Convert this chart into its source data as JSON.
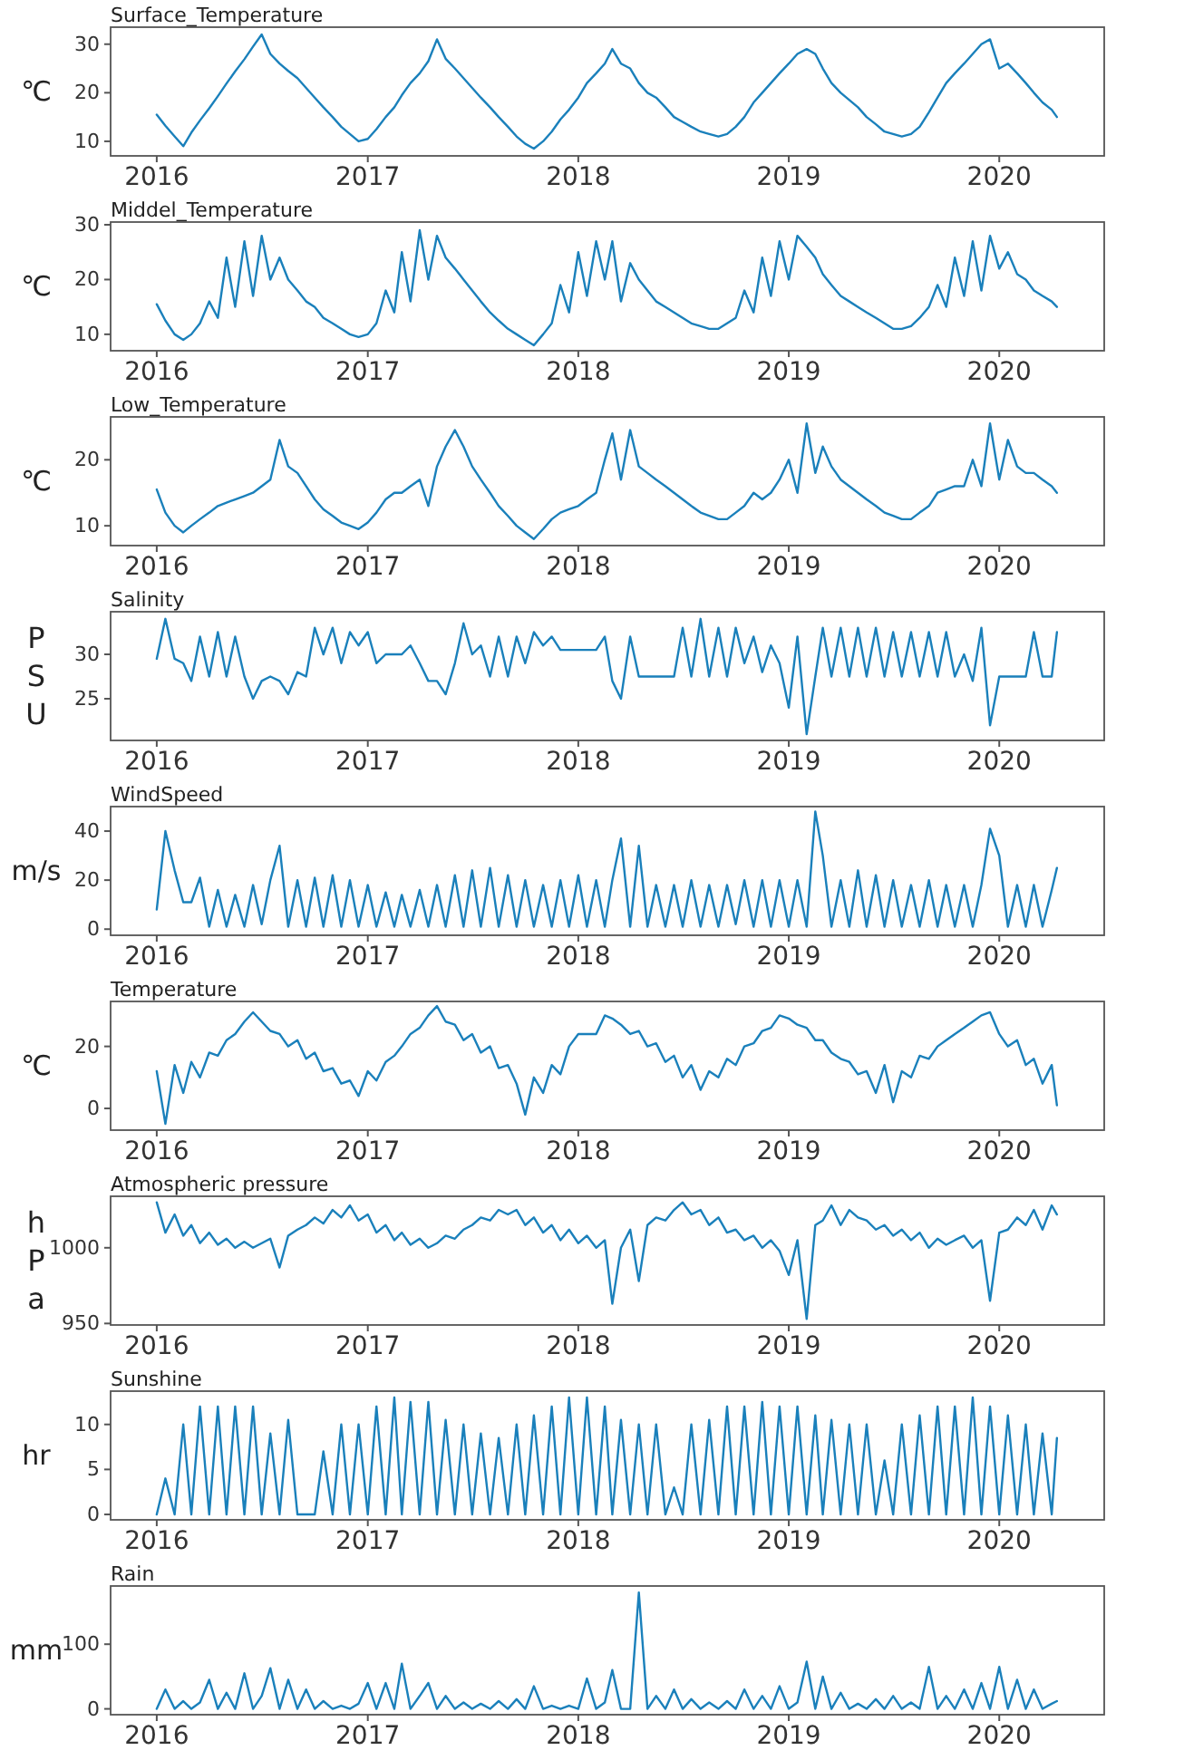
{
  "chart_data": [
    {
      "type": "line",
      "title": "Surface_Temperature",
      "ylabel": "℃",
      "color": "#1a80bb",
      "xlim": [
        "2015-10-13",
        "2020-07-01"
      ],
      "xticks": [
        {
          "value": "2016-01-01",
          "label": "2016"
        },
        {
          "value": "2017-01-01",
          "label": "2017"
        },
        {
          "value": "2018-01-01",
          "label": "2018"
        },
        {
          "value": "2019-01-01",
          "label": "2019"
        },
        {
          "value": "2020-01-01",
          "label": "2020"
        }
      ],
      "ylim": [
        7,
        33.5
      ],
      "yticks": [
        10,
        20,
        30
      ],
      "x": [
        "2016-01-01",
        "2016-01-16",
        "2016-02-01",
        "2016-02-16",
        "2016-03-01",
        "2016-03-16",
        "2016-04-01",
        "2016-04-16",
        "2016-05-01",
        "2016-05-16",
        "2016-06-01",
        "2016-06-16",
        "2016-07-01",
        "2016-07-16",
        "2016-08-01",
        "2016-08-16",
        "2016-09-01",
        "2016-09-16",
        "2016-10-01",
        "2016-10-16",
        "2016-11-01",
        "2016-11-16",
        "2016-12-01",
        "2016-12-16",
        "2017-01-01",
        "2017-01-16",
        "2017-02-01",
        "2017-02-16",
        "2017-03-01",
        "2017-03-16",
        "2017-04-01",
        "2017-04-16",
        "2017-05-01",
        "2017-05-16",
        "2017-06-01",
        "2017-06-16",
        "2017-07-01",
        "2017-07-16",
        "2017-08-01",
        "2017-08-16",
        "2017-09-01",
        "2017-09-16",
        "2017-10-01",
        "2017-10-16",
        "2017-11-01",
        "2017-11-16",
        "2017-12-01",
        "2017-12-16",
        "2018-01-01",
        "2018-01-16",
        "2018-02-01",
        "2018-02-16",
        "2018-03-01",
        "2018-03-16",
        "2018-04-01",
        "2018-04-16",
        "2018-05-01",
        "2018-05-16",
        "2018-06-01",
        "2018-06-16",
        "2018-07-01",
        "2018-07-16",
        "2018-08-01",
        "2018-08-16",
        "2018-09-01",
        "2018-09-16",
        "2018-10-01",
        "2018-10-16",
        "2018-11-01",
        "2018-11-16",
        "2018-12-01",
        "2018-12-16",
        "2019-01-01",
        "2019-01-16",
        "2019-02-01",
        "2019-02-16",
        "2019-03-01",
        "2019-03-16",
        "2019-04-01",
        "2019-04-16",
        "2019-05-01",
        "2019-05-16",
        "2019-06-01",
        "2019-06-16",
        "2019-07-01",
        "2019-07-16",
        "2019-08-01",
        "2019-08-16",
        "2019-09-01",
        "2019-09-16",
        "2019-10-01",
        "2019-10-16",
        "2019-11-01",
        "2019-11-16",
        "2019-12-01",
        "2019-12-16",
        "2020-01-01",
        "2020-01-16",
        "2020-02-01",
        "2020-02-16",
        "2020-03-01",
        "2020-03-16",
        "2020-04-01",
        "2020-04-10"
      ],
      "values": [
        15.5,
        13.2,
        11,
        9,
        11.8,
        14.3,
        16.8,
        19.3,
        21.9,
        24.4,
        26.9,
        29.5,
        32,
        28,
        26,
        24.5,
        23,
        21,
        19,
        17,
        15,
        13,
        11.5,
        10,
        10.5,
        12.5,
        15,
        17,
        19.5,
        22,
        24,
        26.5,
        31,
        27,
        25,
        23,
        21,
        19,
        17,
        15,
        13,
        11,
        9.5,
        8.5,
        10,
        12,
        14.5,
        16.5,
        19,
        22,
        24,
        26,
        29,
        26,
        25,
        22,
        20,
        19,
        17,
        15,
        14,
        13,
        12,
        11.5,
        11,
        11.5,
        13,
        15,
        18,
        20,
        22,
        24,
        26,
        28,
        29,
        28,
        25,
        22,
        20,
        18.5,
        17,
        15,
        13.5,
        12,
        11.5,
        11,
        11.5,
        13,
        16,
        19,
        22,
        24,
        26,
        28,
        30,
        31,
        25,
        26,
        24,
        22,
        20,
        18,
        16.5,
        15
      ]
    },
    {
      "type": "line",
      "title": "Middel_Temperature",
      "ylabel": "℃",
      "color": "#1a80bb",
      "xlim": [
        "2015-10-13",
        "2020-07-01"
      ],
      "xticks": [
        {
          "value": "2016-01-01",
          "label": "2016"
        },
        {
          "value": "2017-01-01",
          "label": "2017"
        },
        {
          "value": "2018-01-01",
          "label": "2018"
        },
        {
          "value": "2019-01-01",
          "label": "2019"
        },
        {
          "value": "2020-01-01",
          "label": "2020"
        }
      ],
      "ylim": [
        7,
        30.5
      ],
      "yticks": [
        10,
        20,
        30
      ],
      "x": [
        "2016-01-01",
        "2016-01-16",
        "2016-02-01",
        "2016-02-16",
        "2016-03-01",
        "2016-03-16",
        "2016-04-01",
        "2016-04-16",
        "2016-05-01",
        "2016-05-16",
        "2016-06-01",
        "2016-06-16",
        "2016-07-01",
        "2016-07-16",
        "2016-08-01",
        "2016-08-16",
        "2016-09-01",
        "2016-09-16",
        "2016-10-01",
        "2016-10-16",
        "2016-11-01",
        "2016-11-16",
        "2016-12-01",
        "2016-12-16",
        "2017-01-01",
        "2017-01-16",
        "2017-02-01",
        "2017-02-16",
        "2017-03-01",
        "2017-03-16",
        "2017-04-01",
        "2017-04-16",
        "2017-05-01",
        "2017-05-16",
        "2017-06-01",
        "2017-06-16",
        "2017-07-01",
        "2017-07-16",
        "2017-08-01",
        "2017-08-16",
        "2017-09-01",
        "2017-09-16",
        "2017-10-01",
        "2017-10-16",
        "2017-11-01",
        "2017-11-16",
        "2017-12-01",
        "2017-12-16",
        "2018-01-01",
        "2018-01-16",
        "2018-02-01",
        "2018-02-16",
        "2018-03-01",
        "2018-03-16",
        "2018-04-01",
        "2018-04-16",
        "2018-05-01",
        "2018-05-16",
        "2018-06-01",
        "2018-06-16",
        "2018-07-01",
        "2018-07-16",
        "2018-08-01",
        "2018-08-16",
        "2018-09-01",
        "2018-09-16",
        "2018-10-01",
        "2018-10-16",
        "2018-11-01",
        "2018-11-16",
        "2018-12-01",
        "2018-12-16",
        "2019-01-01",
        "2019-01-16",
        "2019-02-01",
        "2019-02-16",
        "2019-03-01",
        "2019-03-16",
        "2019-04-01",
        "2019-04-16",
        "2019-05-01",
        "2019-05-16",
        "2019-06-01",
        "2019-06-16",
        "2019-07-01",
        "2019-07-16",
        "2019-08-01",
        "2019-08-16",
        "2019-09-01",
        "2019-09-16",
        "2019-10-01",
        "2019-10-16",
        "2019-11-01",
        "2019-11-16",
        "2019-12-01",
        "2019-12-16",
        "2020-01-01",
        "2020-01-16",
        "2020-02-01",
        "2020-02-16",
        "2020-03-01",
        "2020-03-16",
        "2020-04-01",
        "2020-04-10"
      ],
      "values": [
        15.5,
        12.5,
        10,
        9,
        10,
        12,
        16,
        13,
        24,
        15,
        27,
        17,
        28,
        20,
        24,
        20,
        18,
        16,
        15,
        13,
        12,
        11,
        10,
        9.5,
        10,
        12,
        18,
        14,
        25,
        16,
        29,
        20,
        28,
        24,
        22,
        20,
        18,
        16,
        14,
        12.5,
        11,
        10,
        9,
        8,
        10,
        12,
        19,
        14,
        25,
        17,
        27,
        20,
        27,
        16,
        23,
        20,
        18,
        16,
        15,
        14,
        13,
        12,
        11.5,
        11,
        11,
        12,
        13,
        18,
        14,
        24,
        17,
        27,
        20,
        28,
        26,
        24,
        21,
        19,
        17,
        16,
        15,
        14,
        13,
        12,
        11,
        11,
        11.5,
        13,
        15,
        19,
        15,
        24,
        17,
        27,
        18,
        28,
        22,
        25,
        21,
        20,
        18,
        17,
        16,
        15
      ]
    },
    {
      "type": "line",
      "title": "Low_Temperature",
      "ylabel": "℃",
      "color": "#1a80bb",
      "xlim": [
        "2015-10-13",
        "2020-07-01"
      ],
      "xticks": [
        {
          "value": "2016-01-01",
          "label": "2016"
        },
        {
          "value": "2017-01-01",
          "label": "2017"
        },
        {
          "value": "2018-01-01",
          "label": "2018"
        },
        {
          "value": "2019-01-01",
          "label": "2019"
        },
        {
          "value": "2020-01-01",
          "label": "2020"
        }
      ],
      "ylim": [
        7,
        26.5
      ],
      "yticks": [
        10,
        20
      ],
      "x": [
        "2016-01-01",
        "2016-01-16",
        "2016-02-01",
        "2016-02-16",
        "2016-03-01",
        "2016-03-16",
        "2016-04-01",
        "2016-04-16",
        "2016-05-01",
        "2016-05-16",
        "2016-06-01",
        "2016-06-16",
        "2016-07-01",
        "2016-07-16",
        "2016-08-01",
        "2016-08-16",
        "2016-09-01",
        "2016-09-16",
        "2016-10-01",
        "2016-10-16",
        "2016-11-01",
        "2016-11-16",
        "2016-12-01",
        "2016-12-16",
        "2017-01-01",
        "2017-01-16",
        "2017-02-01",
        "2017-02-16",
        "2017-03-01",
        "2017-03-16",
        "2017-04-01",
        "2017-04-16",
        "2017-05-01",
        "2017-05-16",
        "2017-06-01",
        "2017-06-16",
        "2017-07-01",
        "2017-07-16",
        "2017-08-01",
        "2017-08-16",
        "2017-09-01",
        "2017-09-16",
        "2017-10-01",
        "2017-10-16",
        "2017-11-01",
        "2017-11-16",
        "2017-12-01",
        "2017-12-16",
        "2018-01-01",
        "2018-01-16",
        "2018-02-01",
        "2018-02-16",
        "2018-03-01",
        "2018-03-16",
        "2018-04-01",
        "2018-04-16",
        "2018-05-01",
        "2018-05-16",
        "2018-06-01",
        "2018-06-16",
        "2018-07-01",
        "2018-07-16",
        "2018-08-01",
        "2018-08-16",
        "2018-09-01",
        "2018-09-16",
        "2018-10-01",
        "2018-10-16",
        "2018-11-01",
        "2018-11-16",
        "2018-12-01",
        "2018-12-16",
        "2019-01-01",
        "2019-01-16",
        "2019-02-01",
        "2019-02-16",
        "2019-03-01",
        "2019-03-16",
        "2019-04-01",
        "2019-04-16",
        "2019-05-01",
        "2019-05-16",
        "2019-06-01",
        "2019-06-16",
        "2019-07-01",
        "2019-07-16",
        "2019-08-01",
        "2019-08-16",
        "2019-09-01",
        "2019-09-16",
        "2019-10-01",
        "2019-10-16",
        "2019-11-01",
        "2019-11-16",
        "2019-12-01",
        "2019-12-16",
        "2020-01-01",
        "2020-01-16",
        "2020-02-01",
        "2020-02-16",
        "2020-03-01",
        "2020-03-16",
        "2020-04-01",
        "2020-04-10"
      ],
      "values": [
        15.5,
        12,
        10,
        9,
        10,
        11,
        12,
        13,
        13.5,
        14,
        14.5,
        15,
        16,
        17,
        23,
        19,
        18,
        16,
        14,
        12.5,
        11.5,
        10.5,
        10,
        9.5,
        10.5,
        12,
        14,
        15,
        15,
        16,
        17,
        13,
        19,
        22,
        24.5,
        22,
        19,
        17,
        15,
        13,
        11.5,
        10,
        9,
        8,
        9.5,
        11,
        12,
        12.5,
        13,
        14,
        15,
        20,
        24,
        17,
        24.5,
        19,
        18,
        17,
        16,
        15,
        14,
        13,
        12,
        11.5,
        11,
        11,
        12,
        13,
        15,
        14,
        15,
        17,
        20,
        15,
        25.5,
        18,
        22,
        19,
        17,
        16,
        15,
        14,
        13,
        12,
        11.5,
        11,
        11,
        12,
        13,
        15,
        15.5,
        16,
        16,
        20,
        16,
        25.5,
        17,
        23,
        19,
        18,
        18,
        17,
        16,
        15
      ]
    },
    {
      "type": "line",
      "title": "Salinity",
      "ylabel": "P\nS\nU",
      "color": "#1a80bb",
      "xlim": [
        "2015-10-13",
        "2020-07-01"
      ],
      "xticks": [
        {
          "value": "2016-01-01",
          "label": "2016"
        },
        {
          "value": "2017-01-01",
          "label": "2017"
        },
        {
          "value": "2018-01-01",
          "label": "2018"
        },
        {
          "value": "2019-01-01",
          "label": "2019"
        },
        {
          "value": "2020-01-01",
          "label": "2020"
        }
      ],
      "ylim": [
        20.3,
        34.8
      ],
      "yticks": [
        25,
        30
      ],
      "x": [
        "2016-01-01",
        "2016-01-16",
        "2016-02-01",
        "2016-02-16",
        "2016-03-01",
        "2016-03-16",
        "2016-04-01",
        "2016-04-16",
        "2016-05-01",
        "2016-05-16",
        "2016-06-01",
        "2016-06-16",
        "2016-07-01",
        "2016-07-16",
        "2016-08-01",
        "2016-08-16",
        "2016-09-01",
        "2016-09-16",
        "2016-10-01",
        "2016-10-16",
        "2016-11-01",
        "2016-11-16",
        "2016-12-01",
        "2016-12-16",
        "2017-01-01",
        "2017-01-16",
        "2017-02-01",
        "2017-02-16",
        "2017-03-01",
        "2017-03-16",
        "2017-04-01",
        "2017-04-16",
        "2017-05-01",
        "2017-05-16",
        "2017-06-01",
        "2017-06-16",
        "2017-07-01",
        "2017-07-16",
        "2017-08-01",
        "2017-08-16",
        "2017-09-01",
        "2017-09-16",
        "2017-10-01",
        "2017-10-16",
        "2017-11-01",
        "2017-11-16",
        "2017-12-01",
        "2017-12-16",
        "2018-01-01",
        "2018-01-16",
        "2018-02-01",
        "2018-02-16",
        "2018-03-01",
        "2018-03-16",
        "2018-04-01",
        "2018-04-16",
        "2018-05-01",
        "2018-05-16",
        "2018-06-01",
        "2018-06-16",
        "2018-07-01",
        "2018-07-16",
        "2018-08-01",
        "2018-08-16",
        "2018-09-01",
        "2018-09-16",
        "2018-10-01",
        "2018-10-16",
        "2018-11-01",
        "2018-11-16",
        "2018-12-01",
        "2018-12-16",
        "2019-01-01",
        "2019-01-16",
        "2019-02-01",
        "2019-02-16",
        "2019-03-01",
        "2019-03-16",
        "2019-04-01",
        "2019-04-16",
        "2019-05-01",
        "2019-05-16",
        "2019-06-01",
        "2019-06-16",
        "2019-07-01",
        "2019-07-16",
        "2019-08-01",
        "2019-08-16",
        "2019-09-01",
        "2019-09-16",
        "2019-10-01",
        "2019-10-16",
        "2019-11-01",
        "2019-11-16",
        "2019-12-01",
        "2019-12-16",
        "2020-01-01",
        "2020-01-16",
        "2020-02-01",
        "2020-02-16",
        "2020-03-01",
        "2020-03-16",
        "2020-04-01",
        "2020-04-10"
      ],
      "values": [
        29.5,
        34,
        29.5,
        29,
        27,
        32,
        27.5,
        32.5,
        27.5,
        32,
        27.5,
        25,
        27,
        27.5,
        27,
        25.5,
        28,
        27.5,
        33,
        30,
        33,
        29,
        32.5,
        31,
        32.5,
        29,
        30,
        30,
        30,
        31,
        29,
        27,
        27,
        25.5,
        29,
        33.5,
        30,
        31,
        27.5,
        32,
        27.5,
        32,
        29,
        32.5,
        31,
        32,
        30.5,
        30.5,
        30.5,
        30.5,
        30.5,
        32,
        27,
        25,
        32,
        27.5,
        27.5,
        27.5,
        27.5,
        27.5,
        33,
        27.5,
        34,
        27.5,
        33,
        27.5,
        33,
        29,
        32,
        28,
        31,
        29,
        24,
        32,
        21,
        27.5,
        33,
        27.5,
        33,
        27.5,
        33,
        27.5,
        33,
        27.5,
        32.5,
        27.5,
        32.5,
        27.5,
        32.5,
        27.5,
        32.5,
        27.5,
        30,
        27,
        33,
        22,
        27.5,
        27.5,
        27.5,
        27.5,
        32.5,
        27.5,
        27.5,
        32.5
      ]
    },
    {
      "type": "line",
      "title": "WindSpeed",
      "ylabel": "m/s",
      "color": "#1a80bb",
      "xlim": [
        "2015-10-13",
        "2020-07-01"
      ],
      "xticks": [
        {
          "value": "2016-01-01",
          "label": "2016"
        },
        {
          "value": "2017-01-01",
          "label": "2017"
        },
        {
          "value": "2018-01-01",
          "label": "2018"
        },
        {
          "value": "2019-01-01",
          "label": "2019"
        },
        {
          "value": "2020-01-01",
          "label": "2020"
        }
      ],
      "ylim": [
        -2.5,
        50
      ],
      "yticks": [
        0,
        20,
        40
      ],
      "x": [
        "2016-01-01",
        "2016-01-16",
        "2016-02-01",
        "2016-02-16",
        "2016-03-01",
        "2016-03-16",
        "2016-04-01",
        "2016-04-16",
        "2016-05-01",
        "2016-05-16",
        "2016-06-01",
        "2016-06-16",
        "2016-07-01",
        "2016-07-16",
        "2016-08-01",
        "2016-08-16",
        "2016-09-01",
        "2016-09-16",
        "2016-10-01",
        "2016-10-16",
        "2016-11-01",
        "2016-11-16",
        "2016-12-01",
        "2016-12-16",
        "2017-01-01",
        "2017-01-16",
        "2017-02-01",
        "2017-02-16",
        "2017-03-01",
        "2017-03-16",
        "2017-04-01",
        "2017-04-16",
        "2017-05-01",
        "2017-05-16",
        "2017-06-01",
        "2017-06-16",
        "2017-07-01",
        "2017-07-16",
        "2017-08-01",
        "2017-08-16",
        "2017-09-01",
        "2017-09-16",
        "2017-10-01",
        "2017-10-16",
        "2017-11-01",
        "2017-11-16",
        "2017-12-01",
        "2017-12-16",
        "2018-01-01",
        "2018-01-16",
        "2018-02-01",
        "2018-02-16",
        "2018-03-01",
        "2018-03-16",
        "2018-04-01",
        "2018-04-16",
        "2018-05-01",
        "2018-05-16",
        "2018-06-01",
        "2018-06-16",
        "2018-07-01",
        "2018-07-16",
        "2018-08-01",
        "2018-08-16",
        "2018-09-01",
        "2018-09-16",
        "2018-10-01",
        "2018-10-16",
        "2018-11-01",
        "2018-11-16",
        "2018-12-01",
        "2018-12-16",
        "2019-01-01",
        "2019-01-16",
        "2019-02-01",
        "2019-02-16",
        "2019-03-01",
        "2019-03-16",
        "2019-04-01",
        "2019-04-16",
        "2019-05-01",
        "2019-05-16",
        "2019-06-01",
        "2019-06-16",
        "2019-07-01",
        "2019-07-16",
        "2019-08-01",
        "2019-08-16",
        "2019-09-01",
        "2019-09-16",
        "2019-10-01",
        "2019-10-16",
        "2019-11-01",
        "2019-11-16",
        "2019-12-01",
        "2019-12-16",
        "2020-01-01",
        "2020-01-16",
        "2020-02-01",
        "2020-02-16",
        "2020-03-01",
        "2020-03-16",
        "2020-04-01",
        "2020-04-10"
      ],
      "values": [
        8,
        40,
        24,
        11,
        11,
        21,
        1,
        16,
        1,
        14,
        1,
        18,
        2,
        20,
        34,
        1,
        20,
        1,
        21,
        1,
        22,
        1,
        20,
        1,
        18,
        1,
        15,
        1,
        14,
        1,
        16,
        1,
        18,
        1,
        22,
        1,
        24,
        1,
        25,
        1,
        22,
        1,
        20,
        1,
        18,
        1,
        20,
        1,
        22,
        1,
        20,
        1,
        20,
        37,
        1,
        34,
        1,
        18,
        1,
        18,
        1,
        20,
        1,
        18,
        1,
        18,
        2,
        20,
        1,
        20,
        1,
        20,
        1,
        20,
        1,
        48,
        30,
        1,
        20,
        1,
        24,
        1,
        22,
        1,
        20,
        1,
        18,
        1,
        20,
        1,
        18,
        1,
        18,
        1,
        18,
        41,
        30,
        1,
        18,
        1,
        18,
        1,
        16,
        25
      ]
    },
    {
      "type": "line",
      "title": "Temperature",
      "ylabel": "℃",
      "color": "#1a80bb",
      "xlim": [
        "2015-10-13",
        "2020-07-01"
      ],
      "xticks": [
        {
          "value": "2016-01-01",
          "label": "2016"
        },
        {
          "value": "2017-01-01",
          "label": "2017"
        },
        {
          "value": "2018-01-01",
          "label": "2018"
        },
        {
          "value": "2019-01-01",
          "label": "2019"
        },
        {
          "value": "2020-01-01",
          "label": "2020"
        }
      ],
      "ylim": [
        -7,
        34.5
      ],
      "yticks": [
        0,
        20
      ],
      "x": [
        "2016-01-01",
        "2016-01-16",
        "2016-02-01",
        "2016-02-16",
        "2016-03-01",
        "2016-03-16",
        "2016-04-01",
        "2016-04-16",
        "2016-05-01",
        "2016-05-16",
        "2016-06-01",
        "2016-06-16",
        "2016-07-01",
        "2016-07-16",
        "2016-08-01",
        "2016-08-16",
        "2016-09-01",
        "2016-09-16",
        "2016-10-01",
        "2016-10-16",
        "2016-11-01",
        "2016-11-16",
        "2016-12-01",
        "2016-12-16",
        "2017-01-01",
        "2017-01-16",
        "2017-02-01",
        "2017-02-16",
        "2017-03-01",
        "2017-03-16",
        "2017-04-01",
        "2017-04-16",
        "2017-05-01",
        "2017-05-16",
        "2017-06-01",
        "2017-06-16",
        "2017-07-01",
        "2017-07-16",
        "2017-08-01",
        "2017-08-16",
        "2017-09-01",
        "2017-09-16",
        "2017-10-01",
        "2017-10-16",
        "2017-11-01",
        "2017-11-16",
        "2017-12-01",
        "2017-12-16",
        "2018-01-01",
        "2018-01-16",
        "2018-02-01",
        "2018-02-16",
        "2018-03-01",
        "2018-03-16",
        "2018-04-01",
        "2018-04-16",
        "2018-05-01",
        "2018-05-16",
        "2018-06-01",
        "2018-06-16",
        "2018-07-01",
        "2018-07-16",
        "2018-08-01",
        "2018-08-16",
        "2018-09-01",
        "2018-09-16",
        "2018-10-01",
        "2018-10-16",
        "2018-11-01",
        "2018-11-16",
        "2018-12-01",
        "2018-12-16",
        "2019-01-01",
        "2019-01-16",
        "2019-02-01",
        "2019-02-16",
        "2019-03-01",
        "2019-03-16",
        "2019-04-01",
        "2019-04-16",
        "2019-05-01",
        "2019-05-16",
        "2019-06-01",
        "2019-06-16",
        "2019-07-01",
        "2019-07-16",
        "2019-08-01",
        "2019-08-16",
        "2019-09-01",
        "2019-09-16",
        "2019-10-01",
        "2019-10-16",
        "2019-11-01",
        "2019-11-16",
        "2019-12-01",
        "2019-12-16",
        "2020-01-01",
        "2020-01-16",
        "2020-02-01",
        "2020-02-16",
        "2020-03-01",
        "2020-03-16",
        "2020-04-01",
        "2020-04-10"
      ],
      "values": [
        12,
        -5,
        14,
        5,
        15,
        10,
        18,
        17,
        22,
        24,
        28,
        31,
        28,
        25,
        24,
        20,
        22,
        16,
        18,
        12,
        13,
        8,
        9,
        4,
        12,
        9,
        15,
        17,
        20,
        24,
        26,
        30,
        33,
        28,
        27,
        22,
        24,
        18,
        20,
        13,
        14,
        8,
        -2,
        10,
        5,
        14,
        11,
        20,
        24,
        24,
        24,
        30,
        29,
        27,
        24,
        25,
        20,
        21,
        15,
        17,
        10,
        14,
        6,
        12,
        10,
        16,
        14,
        20,
        21,
        25,
        26,
        30,
        29,
        27,
        26,
        22,
        22,
        18,
        16,
        15,
        11,
        12,
        5,
        14,
        2,
        12,
        10,
        17,
        16,
        20,
        22,
        24,
        26,
        28,
        30,
        31,
        24,
        20,
        22,
        14,
        16,
        8,
        14,
        1
      ]
    },
    {
      "type": "line",
      "title": "Atmospheric pressure",
      "ylabel": "h\nP\na",
      "color": "#1a80bb",
      "xlim": [
        "2015-10-13",
        "2020-07-01"
      ],
      "xticks": [
        {
          "value": "2016-01-01",
          "label": "2016"
        },
        {
          "value": "2017-01-01",
          "label": "2017"
        },
        {
          "value": "2018-01-01",
          "label": "2018"
        },
        {
          "value": "2019-01-01",
          "label": "2019"
        },
        {
          "value": "2020-01-01",
          "label": "2020"
        }
      ],
      "ylim": [
        949,
        1034
      ],
      "yticks": [
        950,
        1000
      ],
      "x": [
        "2016-01-01",
        "2016-01-16",
        "2016-02-01",
        "2016-02-16",
        "2016-03-01",
        "2016-03-16",
        "2016-04-01",
        "2016-04-16",
        "2016-05-01",
        "2016-05-16",
        "2016-06-01",
        "2016-06-16",
        "2016-07-01",
        "2016-07-16",
        "2016-08-01",
        "2016-08-16",
        "2016-09-01",
        "2016-09-16",
        "2016-10-01",
        "2016-10-16",
        "2016-11-01",
        "2016-11-16",
        "2016-12-01",
        "2016-12-16",
        "2017-01-01",
        "2017-01-16",
        "2017-02-01",
        "2017-02-16",
        "2017-03-01",
        "2017-03-16",
        "2017-04-01",
        "2017-04-16",
        "2017-05-01",
        "2017-05-16",
        "2017-06-01",
        "2017-06-16",
        "2017-07-01",
        "2017-07-16",
        "2017-08-01",
        "2017-08-16",
        "2017-09-01",
        "2017-09-16",
        "2017-10-01",
        "2017-10-16",
        "2017-11-01",
        "2017-11-16",
        "2017-12-01",
        "2017-12-16",
        "2018-01-01",
        "2018-01-16",
        "2018-02-01",
        "2018-02-16",
        "2018-03-01",
        "2018-03-16",
        "2018-04-01",
        "2018-04-16",
        "2018-05-01",
        "2018-05-16",
        "2018-06-01",
        "2018-06-16",
        "2018-07-01",
        "2018-07-16",
        "2018-08-01",
        "2018-08-16",
        "2018-09-01",
        "2018-09-16",
        "2018-10-01",
        "2018-10-16",
        "2018-11-01",
        "2018-11-16",
        "2018-12-01",
        "2018-12-16",
        "2019-01-01",
        "2019-01-16",
        "2019-02-01",
        "2019-02-16",
        "2019-03-01",
        "2019-03-16",
        "2019-04-01",
        "2019-04-16",
        "2019-05-01",
        "2019-05-16",
        "2019-06-01",
        "2019-06-16",
        "2019-07-01",
        "2019-07-16",
        "2019-08-01",
        "2019-08-16",
        "2019-09-01",
        "2019-09-16",
        "2019-10-01",
        "2019-10-16",
        "2019-11-01",
        "2019-11-16",
        "2019-12-01",
        "2019-12-16",
        "2020-01-01",
        "2020-01-16",
        "2020-02-01",
        "2020-02-16",
        "2020-03-01",
        "2020-03-16",
        "2020-04-01",
        "2020-04-10"
      ],
      "values": [
        1030,
        1010,
        1022,
        1008,
        1015,
        1003,
        1010,
        1002,
        1006,
        1000,
        1004,
        1000,
        1003,
        1006,
        987,
        1008,
        1012,
        1015,
        1020,
        1016,
        1025,
        1020,
        1028,
        1018,
        1022,
        1010,
        1015,
        1005,
        1010,
        1002,
        1006,
        1000,
        1003,
        1008,
        1006,
        1012,
        1015,
        1020,
        1018,
        1025,
        1022,
        1025,
        1015,
        1020,
        1010,
        1015,
        1005,
        1012,
        1003,
        1008,
        1000,
        1005,
        963,
        1000,
        1012,
        978,
        1015,
        1020,
        1018,
        1025,
        1030,
        1022,
        1025,
        1015,
        1020,
        1010,
        1012,
        1005,
        1008,
        1000,
        1005,
        998,
        982,
        1005,
        953,
        1015,
        1018,
        1028,
        1015,
        1025,
        1020,
        1018,
        1012,
        1015,
        1008,
        1012,
        1005,
        1010,
        1000,
        1006,
        1002,
        1005,
        1008,
        1000,
        1005,
        965,
        1010,
        1012,
        1020,
        1015,
        1025,
        1012,
        1028,
        1022
      ]
    },
    {
      "type": "line",
      "title": "Sunshine",
      "ylabel": "hr",
      "color": "#1a80bb",
      "xlim": [
        "2015-10-13",
        "2020-07-01"
      ],
      "xticks": [
        {
          "value": "2016-01-01",
          "label": "2016"
        },
        {
          "value": "2017-01-01",
          "label": "2017"
        },
        {
          "value": "2018-01-01",
          "label": "2018"
        },
        {
          "value": "2019-01-01",
          "label": "2019"
        },
        {
          "value": "2020-01-01",
          "label": "2020"
        }
      ],
      "ylim": [
        -0.6,
        13.7
      ],
      "yticks": [
        0,
        5,
        10
      ],
      "x": [
        "2016-01-01",
        "2016-01-16",
        "2016-02-01",
        "2016-02-16",
        "2016-03-01",
        "2016-03-16",
        "2016-04-01",
        "2016-04-16",
        "2016-05-01",
        "2016-05-16",
        "2016-06-01",
        "2016-06-16",
        "2016-07-01",
        "2016-07-16",
        "2016-08-01",
        "2016-08-16",
        "2016-09-01",
        "2016-09-16",
        "2016-10-01",
        "2016-10-16",
        "2016-11-01",
        "2016-11-16",
        "2016-12-01",
        "2016-12-16",
        "2017-01-01",
        "2017-01-16",
        "2017-02-01",
        "2017-02-16",
        "2017-03-01",
        "2017-03-16",
        "2017-04-01",
        "2017-04-16",
        "2017-05-01",
        "2017-05-16",
        "2017-06-01",
        "2017-06-16",
        "2017-07-01",
        "2017-07-16",
        "2017-08-01",
        "2017-08-16",
        "2017-09-01",
        "2017-09-16",
        "2017-10-01",
        "2017-10-16",
        "2017-11-01",
        "2017-11-16",
        "2017-12-01",
        "2017-12-16",
        "2018-01-01",
        "2018-01-16",
        "2018-02-01",
        "2018-02-16",
        "2018-03-01",
        "2018-03-16",
        "2018-04-01",
        "2018-04-16",
        "2018-05-01",
        "2018-05-16",
        "2018-06-01",
        "2018-06-16",
        "2018-07-01",
        "2018-07-16",
        "2018-08-01",
        "2018-08-16",
        "2018-09-01",
        "2018-09-16",
        "2018-10-01",
        "2018-10-16",
        "2018-11-01",
        "2018-11-16",
        "2018-12-01",
        "2018-12-16",
        "2019-01-01",
        "2019-01-16",
        "2019-02-01",
        "2019-02-16",
        "2019-03-01",
        "2019-03-16",
        "2019-04-01",
        "2019-04-16",
        "2019-05-01",
        "2019-05-16",
        "2019-06-01",
        "2019-06-16",
        "2019-07-01",
        "2019-07-16",
        "2019-08-01",
        "2019-08-16",
        "2019-09-01",
        "2019-09-16",
        "2019-10-01",
        "2019-10-16",
        "2019-11-01",
        "2019-11-16",
        "2019-12-01",
        "2019-12-16",
        "2020-01-01",
        "2020-01-16",
        "2020-02-01",
        "2020-02-16",
        "2020-03-01",
        "2020-03-16",
        "2020-04-01",
        "2020-04-10"
      ],
      "values": [
        0,
        4,
        0,
        10,
        0,
        12,
        0,
        12,
        0,
        12,
        0,
        12,
        0,
        9,
        0,
        10.5,
        0,
        0,
        0,
        7,
        0,
        10,
        0,
        10,
        0,
        12,
        0,
        13,
        0,
        12.5,
        0,
        12.5,
        0,
        10.5,
        0,
        10,
        0,
        9,
        0,
        8.5,
        0,
        10,
        0,
        11,
        0,
        12,
        0,
        13,
        0,
        13,
        0,
        12,
        0,
        10.5,
        0,
        10,
        0,
        10,
        0,
        3,
        0,
        10,
        0,
        10.5,
        0,
        12,
        0,
        12,
        0,
        12.5,
        0,
        12,
        0,
        12,
        0,
        11,
        0,
        10.5,
        0,
        10,
        0,
        10,
        0,
        6,
        0,
        10,
        0,
        11,
        0,
        12,
        0,
        12,
        0,
        13,
        0,
        12,
        0,
        11,
        0,
        10,
        0,
        9,
        0,
        8.5
      ]
    },
    {
      "type": "line",
      "title": "Rain",
      "ylabel": "mm",
      "color": "#1a80bb",
      "xlim": [
        "2015-10-13",
        "2020-07-01"
      ],
      "xticks": [
        {
          "value": "2016-01-01",
          "label": "2016"
        },
        {
          "value": "2017-01-01",
          "label": "2017"
        },
        {
          "value": "2018-01-01",
          "label": "2018"
        },
        {
          "value": "2019-01-01",
          "label": "2019"
        },
        {
          "value": "2020-01-01",
          "label": "2020"
        }
      ],
      "ylim": [
        -9,
        190
      ],
      "yticks": [
        0,
        100
      ],
      "x": [
        "2016-01-01",
        "2016-01-16",
        "2016-02-01",
        "2016-02-16",
        "2016-03-01",
        "2016-03-16",
        "2016-04-01",
        "2016-04-16",
        "2016-05-01",
        "2016-05-16",
        "2016-06-01",
        "2016-06-16",
        "2016-07-01",
        "2016-07-16",
        "2016-08-01",
        "2016-08-16",
        "2016-09-01",
        "2016-09-16",
        "2016-10-01",
        "2016-10-16",
        "2016-11-01",
        "2016-11-16",
        "2016-12-01",
        "2016-12-16",
        "2017-01-01",
        "2017-01-16",
        "2017-02-01",
        "2017-02-16",
        "2017-03-01",
        "2017-03-16",
        "2017-04-01",
        "2017-04-16",
        "2017-05-01",
        "2017-05-16",
        "2017-06-01",
        "2017-06-16",
        "2017-07-01",
        "2017-07-16",
        "2017-08-01",
        "2017-08-16",
        "2017-09-01",
        "2017-09-16",
        "2017-10-01",
        "2017-10-16",
        "2017-11-01",
        "2017-11-16",
        "2017-12-01",
        "2017-12-16",
        "2018-01-01",
        "2018-01-16",
        "2018-02-01",
        "2018-02-16",
        "2018-03-01",
        "2018-03-16",
        "2018-04-01",
        "2018-04-16",
        "2018-05-01",
        "2018-05-16",
        "2018-06-01",
        "2018-06-16",
        "2018-07-01",
        "2018-07-16",
        "2018-08-01",
        "2018-08-16",
        "2018-09-01",
        "2018-09-16",
        "2018-10-01",
        "2018-10-16",
        "2018-11-01",
        "2018-11-16",
        "2018-12-01",
        "2018-12-16",
        "2019-01-01",
        "2019-01-16",
        "2019-02-01",
        "2019-02-16",
        "2019-03-01",
        "2019-03-16",
        "2019-04-01",
        "2019-04-16",
        "2019-05-01",
        "2019-05-16",
        "2019-06-01",
        "2019-06-16",
        "2019-07-01",
        "2019-07-16",
        "2019-08-01",
        "2019-08-16",
        "2019-09-01",
        "2019-09-16",
        "2019-10-01",
        "2019-10-16",
        "2019-11-01",
        "2019-11-16",
        "2019-12-01",
        "2019-12-16",
        "2020-01-01",
        "2020-01-16",
        "2020-02-01",
        "2020-02-16",
        "2020-03-01",
        "2020-03-16",
        "2020-04-01",
        "2020-04-10"
      ],
      "values": [
        0,
        30,
        0,
        12,
        0,
        10,
        45,
        0,
        25,
        0,
        55,
        0,
        20,
        63,
        0,
        45,
        0,
        30,
        0,
        12,
        0,
        5,
        0,
        8,
        40,
        0,
        40,
        0,
        70,
        0,
        20,
        40,
        0,
        20,
        0,
        10,
        0,
        8,
        0,
        12,
        0,
        15,
        0,
        35,
        0,
        5,
        0,
        5,
        0,
        47,
        0,
        10,
        60,
        0,
        0,
        180,
        0,
        20,
        0,
        30,
        0,
        15,
        0,
        10,
        0,
        12,
        0,
        30,
        0,
        20,
        0,
        35,
        0,
        10,
        73,
        0,
        50,
        0,
        25,
        0,
        8,
        0,
        15,
        0,
        20,
        0,
        10,
        0,
        65,
        0,
        20,
        0,
        30,
        0,
        40,
        0,
        65,
        0,
        45,
        0,
        30,
        0,
        8,
        12
      ]
    }
  ]
}
